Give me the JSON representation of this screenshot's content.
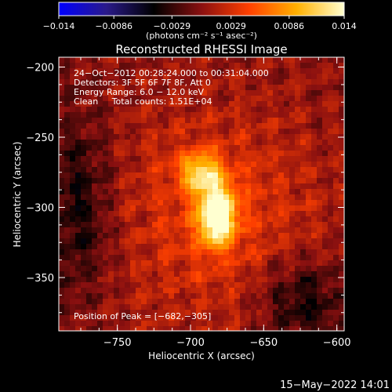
{
  "chart_data": {
    "type": "heatmap",
    "title": "Reconstructed RHESSI Image",
    "xlabel": "Heliocentric X (arcsec)",
    "ylabel": "Heliocentric Y (arcsec)",
    "xlim": [
      -790,
      -595
    ],
    "ylim": [
      -388,
      -193
    ],
    "x_ticks": [
      -750,
      -700,
      -650,
      -600
    ],
    "x_tick_labels": [
      "−750",
      "−700",
      "−650",
      "−600"
    ],
    "y_ticks": [
      -200,
      -250,
      -300,
      -350
    ],
    "y_tick_labels": [
      "−200",
      "−250",
      "−300",
      "−350"
    ],
    "colorbar": {
      "min": -0.014,
      "max": 0.014,
      "tick_values": [
        -0.014,
        -0.0086,
        -0.0029,
        0.0029,
        0.0086,
        0.014
      ],
      "tick_labels": [
        "−0.014",
        "−0.0086",
        "−0.0029",
        "0.0029",
        "0.0086",
        "0.014"
      ],
      "units_label": "(photons cm⁻² s⁻¹ asec⁻²)",
      "colors": [
        "#0000ff",
        "#2a1a8a",
        "#000000",
        "#8a1010",
        "#ff4000",
        "#ffb000",
        "#ffffd0"
      ]
    },
    "annotations": [
      "24−Oct−2012 00:28:24.000 to 00:31:04.000",
      "Detectors: 3F 5F 6F 7F 8F, Att 0",
      "Energy Range: 6.0 − 12.0 keV",
      "Clean     Total counts: 1.51E+04"
    ],
    "peak_label": "Position of Peak = [−682,−305]",
    "peak": {
      "x": -682,
      "y": -305,
      "value": 0.014
    },
    "secondary_lobe": {
      "x": -693,
      "y": -275
    }
  },
  "timestamp": "15−May−2022 14:01"
}
